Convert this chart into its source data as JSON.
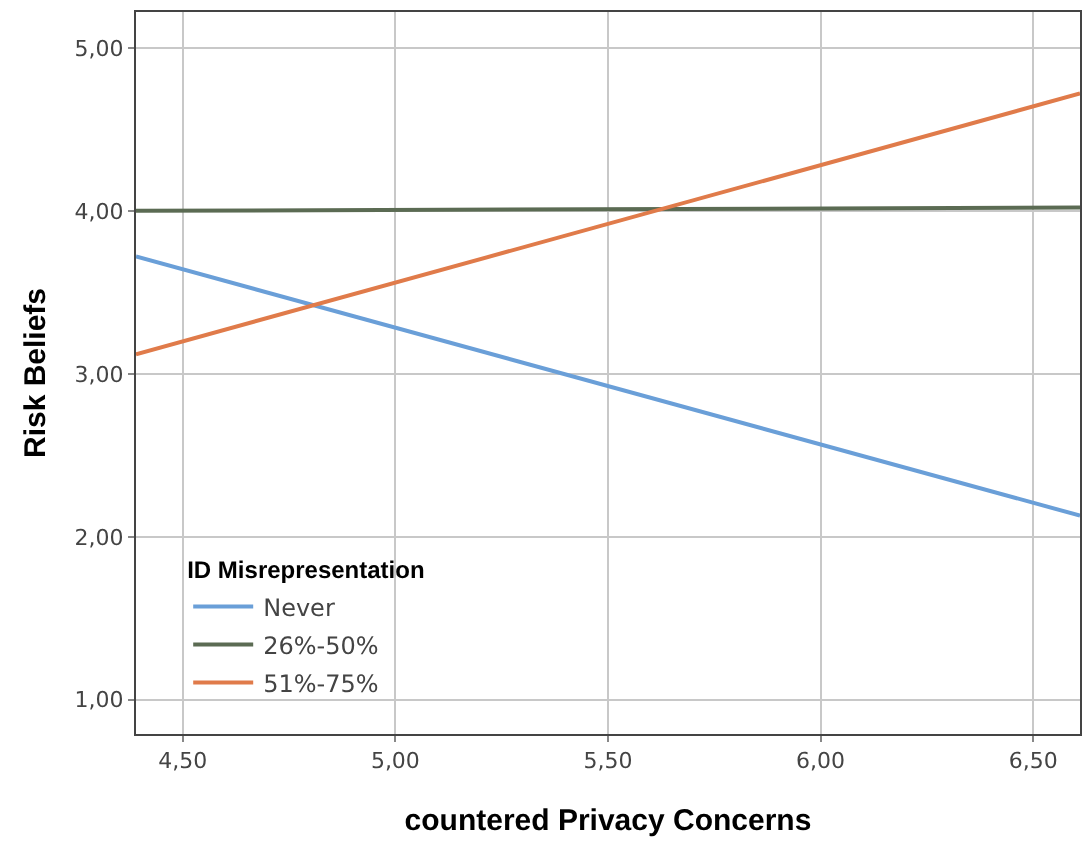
{
  "chart_data": {
    "type": "line",
    "xlabel": "countered Privacy Concerns",
    "ylabel": "Risk Beliefs",
    "legend_title": "ID Misrepresentation",
    "legend": "bottom left",
    "grid": true,
    "marker": "none",
    "line_style": "solid",
    "x": [
      4.39,
      6.61
    ],
    "series": [
      {
        "name": "Never",
        "color": "#6a9fd8",
        "values": [
          3.72,
          2.13
        ]
      },
      {
        "name": "26%-50%",
        "color": "#5b6b53",
        "values": [
          4.0,
          4.02
        ]
      },
      {
        "name": "51%-75%",
        "color": "#e07b4a",
        "values": [
          3.12,
          4.72
        ]
      }
    ],
    "xlim": [
      4.39,
      6.61
    ],
    "xticks": [
      {
        "value": 4.5,
        "label": "4,50"
      },
      {
        "value": 5,
        "label": "5,00"
      },
      {
        "value": 5.5,
        "label": "5,50"
      },
      {
        "value": 6,
        "label": "6,00"
      },
      {
        "value": 6.5,
        "label": "6,50"
      }
    ],
    "ylim": [
      0.79,
      5.22
    ],
    "yticks": [
      {
        "value": 1,
        "label": "1,00"
      },
      {
        "value": 2,
        "label": "2,00"
      },
      {
        "value": 3,
        "label": "3,00"
      },
      {
        "value": 4,
        "label": "4,00"
      },
      {
        "value": 5,
        "label": "5,00"
      }
    ]
  }
}
